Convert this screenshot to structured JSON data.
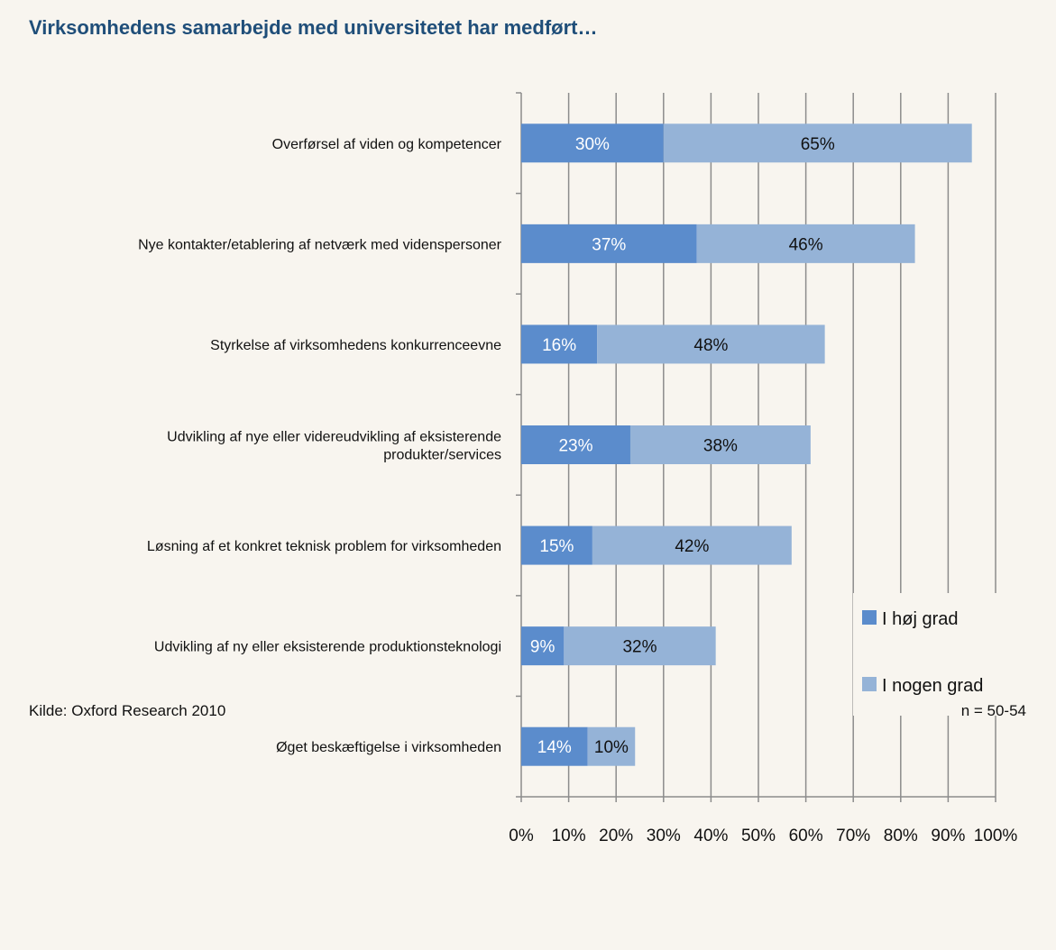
{
  "title": "Virksomhedens samarbejde med universitetet har medført…",
  "source": "Kilde: Oxford Research 2010",
  "n_note": "n = 50-54",
  "colors": {
    "I høj grad": "#5b8ccc",
    "I nogen grad": "#95b3d7",
    "grid": "#8c8c8c",
    "background": "#f8f5ef"
  },
  "chart_data": {
    "type": "bar",
    "orientation": "horizontal",
    "stacked": true,
    "title": "Virksomhedens samarbejde med universitetet har medført…",
    "xlim": [
      0,
      100
    ],
    "ticks": [
      "0%",
      "10%",
      "20%",
      "30%",
      "40%",
      "50%",
      "60%",
      "70%",
      "80%",
      "90%",
      "100%"
    ],
    "grid": true,
    "legend_position": "right",
    "categories": [
      [
        "Overførsel af viden og kompetencer"
      ],
      [
        "Nye kontakter/etablering af netværk med videnspersoner"
      ],
      [
        "Styrkelse af virksomhedens konkurrenceevne"
      ],
      [
        "Udvikling af nye eller videreudvikling af eksisterende",
        "produkter/services"
      ],
      [
        "Løsning af et konkret teknisk problem for virksomheden"
      ],
      [
        "Udvikling af ny eller eksisterende produktionsteknologi"
      ],
      [
        "Øget beskæftigelse i virksomheden"
      ]
    ],
    "series": [
      {
        "name": "I høj grad",
        "values": [
          30,
          37,
          16,
          23,
          15,
          9,
          14
        ],
        "labels": [
          "30%",
          "37%",
          "16%",
          "23%",
          "15%",
          "9%",
          "14%"
        ]
      },
      {
        "name": "I nogen grad",
        "values": [
          65,
          46,
          48,
          38,
          42,
          32,
          10
        ],
        "labels": [
          "65%",
          "46%",
          "48%",
          "38%",
          "42%",
          "32%",
          "10%"
        ]
      }
    ]
  }
}
